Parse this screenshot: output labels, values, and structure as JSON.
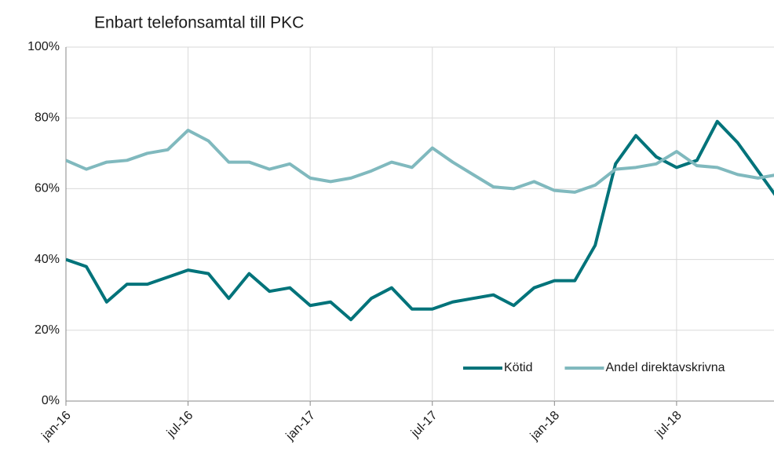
{
  "chart_data": {
    "type": "line",
    "title": "Enbart telefonsamtal till PKC",
    "categories": [
      "jan-16",
      null,
      null,
      null,
      null,
      null,
      "jul-16",
      null,
      null,
      null,
      null,
      null,
      "jan-17",
      null,
      null,
      null,
      null,
      null,
      "jul-17",
      null,
      null,
      null,
      null,
      null,
      "jan-18",
      null,
      null,
      null,
      null,
      null,
      "jul-18",
      null,
      null,
      null,
      null,
      null
    ],
    "series": [
      {
        "name": "Kötid",
        "color": "#00737a",
        "values": [
          40,
          38,
          28,
          33,
          33,
          35,
          37,
          36,
          29,
          36,
          31,
          32,
          27,
          28,
          23,
          29,
          32,
          26,
          26,
          28,
          29,
          30,
          27,
          32,
          34,
          34,
          44,
          67,
          75,
          69,
          66,
          68,
          79,
          73,
          65,
          57
        ]
      },
      {
        "name": "Andel direktavskrivna",
        "color": "#80b9be",
        "values": [
          68,
          65.5,
          67.5,
          68,
          70,
          71,
          76.5,
          73.5,
          67.5,
          67.5,
          65.5,
          67,
          63,
          62,
          63,
          65,
          67.5,
          66,
          71.5,
          67.5,
          64,
          60.5,
          60,
          62,
          59.5,
          59,
          61,
          65.5,
          66,
          67,
          70.5,
          66.5,
          66,
          64,
          63,
          64
        ]
      }
    ],
    "ylim": [
      0,
      100
    ],
    "yticks": [
      {
        "value": 0,
        "label": "0%"
      },
      {
        "value": 20,
        "label": "20%"
      },
      {
        "value": 40,
        "label": "40%"
      },
      {
        "value": 60,
        "label": "60%"
      },
      {
        "value": 80,
        "label": "80%"
      },
      {
        "value": 100,
        "label": "100%"
      }
    ],
    "grid": true,
    "legend": "lower right"
  }
}
